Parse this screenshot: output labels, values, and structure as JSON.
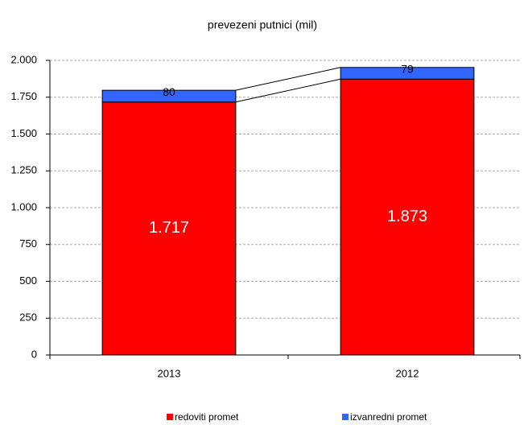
{
  "chart_data": {
    "type": "stacked_bar",
    "title": "prevezeni putnici (mil)",
    "categories": [
      "2013",
      "2012"
    ],
    "series": [
      {
        "name": "redoviti promet",
        "color": "#ff0000",
        "values": [
          1717,
          1873
        ],
        "value_labels": [
          "1.717",
          "1.873"
        ]
      },
      {
        "name": "izvanredni promet",
        "color": "#3366ff",
        "values": [
          80,
          79
        ]
      }
    ],
    "ylim": [
      0,
      2000
    ],
    "yticks": [
      0,
      250,
      500,
      750,
      {
        "value": 1000,
        "label": "1.000"
      },
      {
        "value": 1250,
        "label": "1.250"
      },
      {
        "value": 1500,
        "label": "1.500"
      },
      {
        "value": 1750,
        "label": "1.750"
      },
      {
        "value": 2000,
        "label": "2.000"
      }
    ],
    "grid": true,
    "legend": "bottom"
  }
}
